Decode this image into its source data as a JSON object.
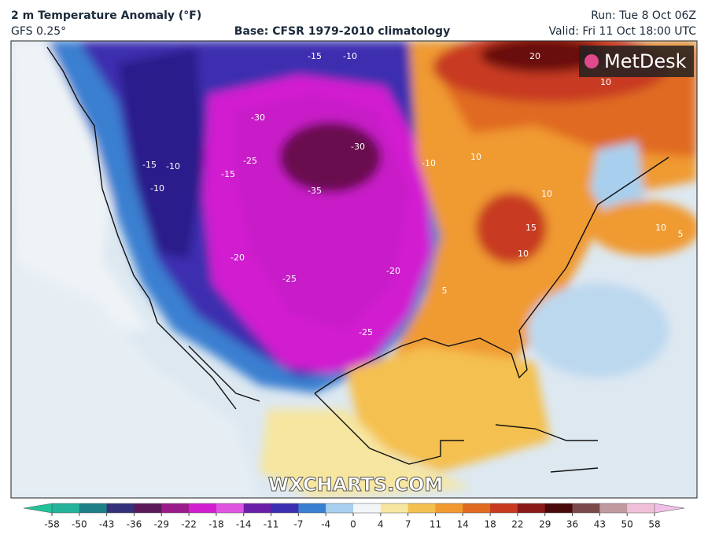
{
  "header": {
    "title": "2 m Temperature Anomaly (°F)",
    "model": "GFS 0.25°",
    "base": "Base: CFSR 1979-2010 climatology",
    "run": "Run: Tue 8 Oct 06Z",
    "valid": "Valid: Fri 11 Oct 18:00 UTC"
  },
  "logo": "MetDesk",
  "watermark": "WXCHARTS.COM",
  "contour_labels": [
    -35,
    -30,
    -30,
    -25,
    -25,
    -20,
    -20,
    -25,
    -15,
    -15,
    -10,
    -10,
    -10,
    -15,
    -10,
    10,
    10,
    15,
    10,
    10,
    5,
    5,
    10,
    20
  ],
  "colorbar": {
    "ticks": [
      -58,
      -50,
      -43,
      -36,
      -29,
      -22,
      -18,
      -14,
      -11,
      -7,
      -4,
      0,
      4,
      7,
      11,
      14,
      18,
      22,
      29,
      36,
      43,
      50,
      58
    ],
    "colors": [
      "#22b39a",
      "#1d7f88",
      "#35307a",
      "#5a1a5a",
      "#9b1a8a",
      "#d21fd0",
      "#e055e0",
      "#6a1fa8",
      "#3c2fb0",
      "#3a7fd0",
      "#a8d0ee",
      "#f2f6f8",
      "#f6e6a0",
      "#f4c050",
      "#f09a30",
      "#e06a20",
      "#c83a20",
      "#8a1a1a",
      "#4a0a0a",
      "#7a4a4a",
      "#c09aa0",
      "#f0c0d8"
    ]
  }
}
